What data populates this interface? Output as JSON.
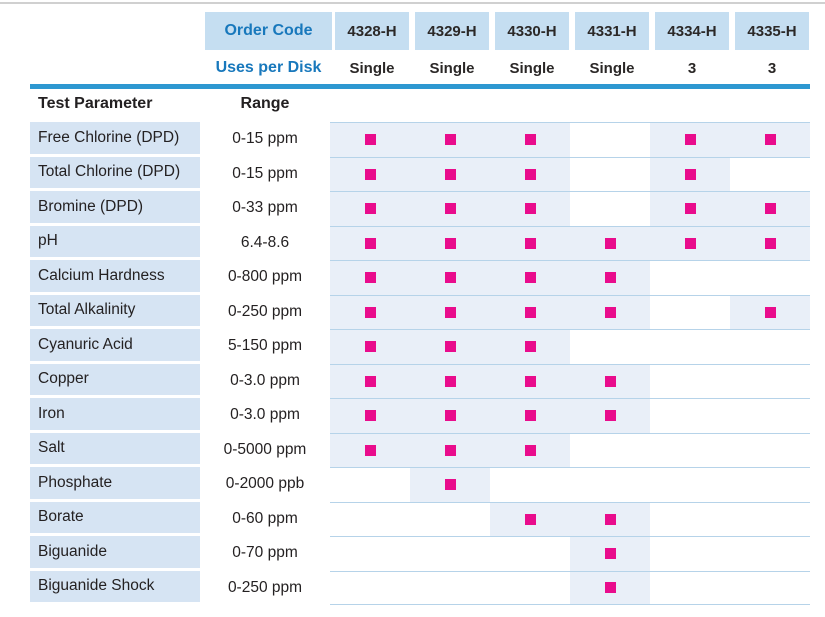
{
  "colors": {
    "header_box_bg": "#c5def1",
    "blue_text": "#1878bc",
    "dark_text": "#2b2827",
    "rule_blue": "#2e98d1",
    "param_column_bg": "#d6e4f3",
    "marked_cell_bg": "#e9eff8",
    "row_separator": "#b6d3e9",
    "mark_square": "#e90c8c"
  },
  "table": {
    "order_code_label": "Order Code",
    "uses_per_disk_label": "Uses per Disk",
    "test_parameter_label": "Test Parameter",
    "range_label": "Range",
    "order_codes": [
      "4328-H",
      "4329-H",
      "4330-H",
      "4331-H",
      "4334-H",
      "4335-H"
    ],
    "uses_per_disk": [
      "Single",
      "Single",
      "Single",
      "Single",
      "3",
      "3"
    ],
    "mark_icon": "filled-square",
    "rows": [
      {
        "parameter": "Free Chlorine (DPD)",
        "range": "0-15 ppm",
        "marks": [
          true,
          true,
          true,
          false,
          true,
          true
        ]
      },
      {
        "parameter": "Total Chlorine (DPD)",
        "range": "0-15 ppm",
        "marks": [
          true,
          true,
          true,
          false,
          true,
          false
        ]
      },
      {
        "parameter": "Bromine (DPD)",
        "range": "0-33 ppm",
        "marks": [
          true,
          true,
          true,
          false,
          true,
          true
        ]
      },
      {
        "parameter": "pH",
        "range": "6.4-8.6",
        "marks": [
          true,
          true,
          true,
          true,
          true,
          true
        ]
      },
      {
        "parameter": "Calcium Hardness",
        "range": "0-800 ppm",
        "marks": [
          true,
          true,
          true,
          true,
          false,
          false
        ]
      },
      {
        "parameter": "Total Alkalinity",
        "range": "0-250 ppm",
        "marks": [
          true,
          true,
          true,
          true,
          false,
          true
        ]
      },
      {
        "parameter": "Cyanuric Acid",
        "range": "5-150 ppm",
        "marks": [
          true,
          true,
          true,
          false,
          false,
          false
        ]
      },
      {
        "parameter": "Copper",
        "range": "0-3.0 ppm",
        "marks": [
          true,
          true,
          true,
          true,
          false,
          false
        ]
      },
      {
        "parameter": "Iron",
        "range": "0-3.0 ppm",
        "marks": [
          true,
          true,
          true,
          true,
          false,
          false
        ]
      },
      {
        "parameter": "Salt",
        "range": "0-5000 ppm",
        "marks": [
          true,
          true,
          true,
          false,
          false,
          false
        ]
      },
      {
        "parameter": "Phosphate",
        "range": "0-2000 ppb",
        "marks": [
          false,
          true,
          false,
          false,
          false,
          false
        ]
      },
      {
        "parameter": "Borate",
        "range": "0-60 ppm",
        "marks": [
          false,
          false,
          true,
          true,
          false,
          false
        ]
      },
      {
        "parameter": "Biguanide",
        "range": "0-70 ppm",
        "marks": [
          false,
          false,
          false,
          true,
          false,
          false
        ]
      },
      {
        "parameter": "Biguanide Shock",
        "range": "0-250 ppm",
        "marks": [
          false,
          false,
          false,
          true,
          false,
          false
        ]
      }
    ]
  }
}
